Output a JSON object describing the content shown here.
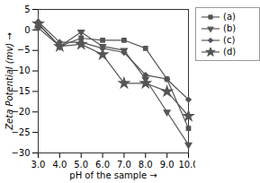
{
  "chart_data": {
    "type": "line",
    "xlabel": "pH of the sample",
    "ylabel": "Zeta Potential (mv)",
    "x": [
      3,
      4,
      5,
      6,
      7,
      8,
      9,
      10
    ],
    "series": [
      {
        "name": "(a)",
        "color": "#555555",
        "marker": "square",
        "values": [
          1.5,
          -4.0,
          -2.0,
          -2.5,
          -2.5,
          -4.5,
          -12.0,
          -24.0
        ]
      },
      {
        "name": "(b)",
        "color": "#555555",
        "marker": "triangle-down",
        "values": [
          0.5,
          -4.0,
          -0.5,
          -4.0,
          -5.0,
          -12.0,
          -20.0,
          -28.0
        ]
      },
      {
        "name": "(c)",
        "color": "#555555",
        "marker": "diamond",
        "values": [
          2.0,
          -3.0,
          -3.0,
          -4.5,
          -5.5,
          -11.0,
          -12.0,
          -17.0
        ]
      },
      {
        "name": "(d)",
        "color": "#555555",
        "marker": "star",
        "values": [
          1.5,
          -4.0,
          -3.5,
          -6.0,
          -13.0,
          -13.0,
          -15.0,
          -21.0
        ]
      }
    ],
    "xlim": [
      3,
      10
    ],
    "ylim": [
      -30,
      5
    ],
    "xticks": [
      3,
      4,
      5,
      6,
      7,
      8,
      9,
      10
    ],
    "yticks": [
      5,
      0,
      -5,
      -10,
      -15,
      -20,
      -25,
      -30
    ],
    "grid": false,
    "legend": "right"
  }
}
